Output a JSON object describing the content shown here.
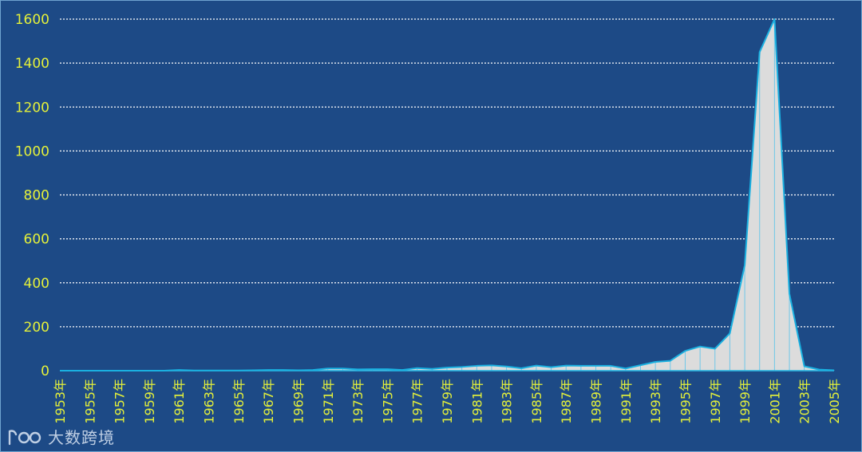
{
  "watermark": {
    "text": "大数跨境",
    "icon": "brand-logo-icon"
  },
  "colors": {
    "background": "#1d4a86",
    "grid": "#ffffff",
    "tick_label": "#e4f03a",
    "area_fill": "#dcdcdc",
    "area_stroke": "#1ab0e0"
  },
  "chart_data": {
    "type": "area",
    "title": "",
    "xlabel": "",
    "ylabel": "",
    "ylim": [
      0,
      1600
    ],
    "yticks": [
      0,
      200,
      400,
      600,
      800,
      1000,
      1200,
      1400,
      1600
    ],
    "grid": true,
    "legend": "none",
    "x": [
      "1953年",
      "1954年",
      "1955年",
      "1956年",
      "1957年",
      "1958年",
      "1959年",
      "1960年",
      "1961年",
      "1962年",
      "1963年",
      "1964年",
      "1965年",
      "1966年",
      "1967年",
      "1968年",
      "1969年",
      "1970年",
      "1971年",
      "1972年",
      "1973年",
      "1974年",
      "1975年",
      "1976年",
      "1977年",
      "1978年",
      "1979年",
      "1980年",
      "1981年",
      "1982年",
      "1983年",
      "1984年",
      "1985年",
      "1986年",
      "1987年",
      "1988年",
      "1989年",
      "1990年",
      "1991年",
      "1992年",
      "1993年",
      "1994年",
      "1995年",
      "1996年",
      "1997年",
      "1998年",
      "1999年",
      "2000年",
      "2001年",
      "2002年",
      "2003年",
      "2004年",
      "2005年"
    ],
    "x_tick_labels": [
      "1953年",
      "1955年",
      "1957年",
      "1959年",
      "1961年",
      "1963年",
      "1965年",
      "1967年",
      "1969年",
      "1971年",
      "1973年",
      "1975年",
      "1977年",
      "1979年",
      "1981年",
      "1983年",
      "1985年",
      "1987年",
      "1989年",
      "1991年",
      "1993年",
      "1995年",
      "1997年",
      "1999年",
      "2001年",
      "2003年",
      "2005年"
    ],
    "values": [
      0,
      0,
      0,
      0,
      0,
      0,
      0,
      0,
      3,
      1,
      1,
      1,
      1,
      2,
      3,
      3,
      2,
      3,
      10,
      10,
      6,
      7,
      7,
      3,
      12,
      8,
      14,
      17,
      22,
      24,
      19,
      11,
      23,
      16,
      23,
      22,
      22,
      22,
      10,
      25,
      40,
      45,
      90,
      110,
      100,
      170,
      480,
      1450,
      1600,
      350,
      20,
      5,
      2
    ]
  }
}
